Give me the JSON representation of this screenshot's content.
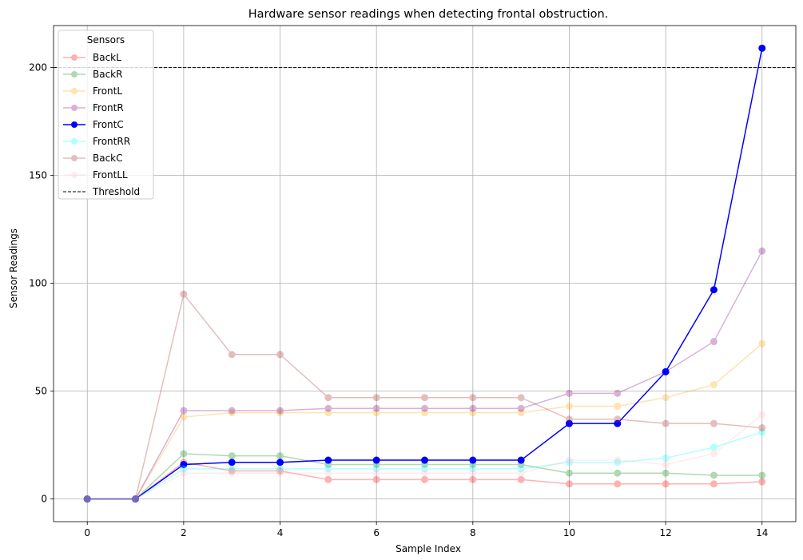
{
  "chart_data": {
    "type": "line",
    "title": "Hardware sensor readings when detecting frontal obstruction.",
    "xlabel": "Sample Index",
    "ylabel": "Sensor Readings",
    "xlim": [
      -0.7,
      14.7
    ],
    "ylim": [
      -10.5,
      219.5
    ],
    "xticks": [
      0,
      2,
      4,
      6,
      8,
      10,
      12,
      14
    ],
    "yticks": [
      0,
      50,
      100,
      150,
      200
    ],
    "grid": true,
    "legend": {
      "title": "Sensors",
      "placement": "top-left"
    },
    "x": [
      0,
      1,
      2,
      3,
      4,
      5,
      6,
      7,
      8,
      9,
      10,
      11,
      12,
      13,
      14
    ],
    "series": [
      {
        "name": "BackL",
        "color": "#ff0000",
        "alpha": 0.3,
        "marker": true,
        "values": [
          0,
          0,
          17,
          13,
          13,
          9,
          9,
          9,
          9,
          9,
          7,
          7,
          7,
          7,
          8
        ]
      },
      {
        "name": "BackR",
        "color": "#008000",
        "alpha": 0.3,
        "marker": true,
        "values": [
          0,
          0,
          21,
          20,
          20,
          16,
          16,
          16,
          16,
          16,
          12,
          12,
          12,
          11,
          11
        ]
      },
      {
        "name": "FrontL",
        "color": "#ffa500",
        "alpha": 0.3,
        "marker": true,
        "values": [
          0,
          0,
          38,
          40,
          40,
          40,
          40,
          40,
          40,
          40,
          43,
          43,
          47,
          53,
          72
        ]
      },
      {
        "name": "FrontR",
        "color": "#800080",
        "alpha": 0.3,
        "marker": true,
        "values": [
          0,
          0,
          41,
          41,
          41,
          42,
          42,
          42,
          42,
          42,
          49,
          49,
          59,
          73,
          115
        ]
      },
      {
        "name": "FrontC",
        "color": "#0000ff",
        "alpha": 1.0,
        "marker": true,
        "values": [
          0,
          0,
          16,
          17,
          17,
          18,
          18,
          18,
          18,
          18,
          35,
          35,
          59,
          97,
          209
        ]
      },
      {
        "name": "FrontRR",
        "color": "#00ffff",
        "alpha": 0.3,
        "marker": true,
        "values": [
          0,
          0,
          14,
          14,
          14,
          14,
          14,
          14,
          14,
          14,
          17,
          17,
          19,
          24,
          31
        ]
      },
      {
        "name": "BackC",
        "color": "#a52a2a",
        "alpha": 0.3,
        "marker": true,
        "values": [
          0,
          0,
          95,
          67,
          67,
          47,
          47,
          47,
          47,
          47,
          37,
          37,
          35,
          35,
          33
        ]
      },
      {
        "name": "FrontLL",
        "color": "#ffc0cb",
        "alpha": 0.3,
        "marker": true,
        "values": [
          0,
          0,
          12,
          12,
          12,
          12,
          12,
          12,
          12,
          12,
          18,
          18,
          16,
          21,
          39
        ]
      }
    ],
    "threshold": {
      "name": "Threshold",
      "value": 200,
      "color": "#000000",
      "style": "dashed"
    }
  }
}
